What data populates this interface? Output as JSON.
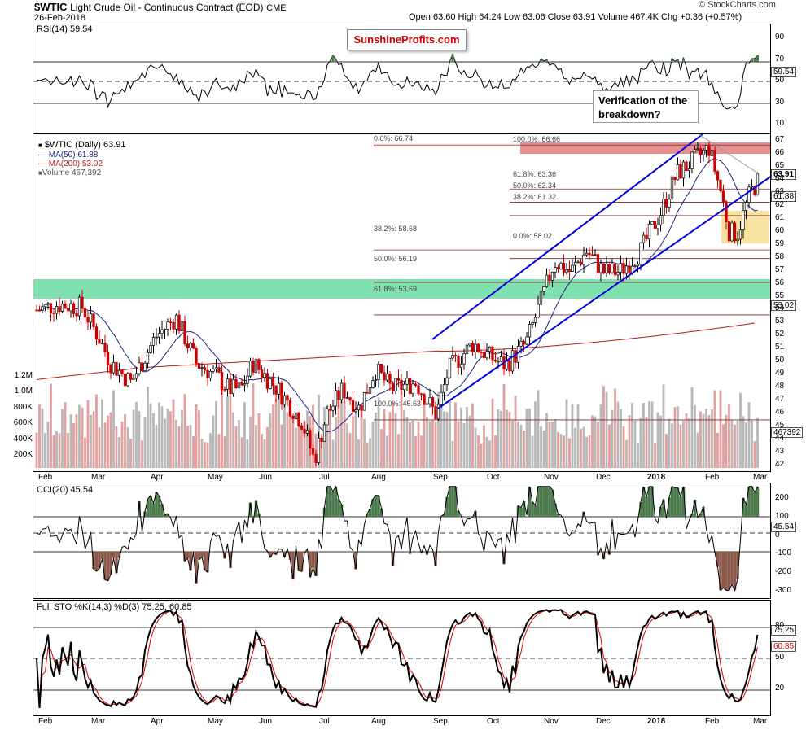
{
  "header": {
    "symbol": "$WTIC",
    "name": "Light Crude Oil - Continuous Contract (EOD)",
    "exchange": "CME",
    "date": "26-Feb-2018",
    "ohlc": "Open 63.60  High 64.24  Low 63.06  Close 63.91  Volume 467.4K  Chg +0.36 (+0.57%)",
    "watermark": "© StockCharts.com"
  },
  "logo_text": "SunshineProfits.com",
  "annotation": "Verification of the breakdown?",
  "rsi_panel": {
    "title": "RSI(14) 59.54",
    "last": "59.54",
    "levels": [
      "90",
      "70",
      "50",
      "30",
      "10"
    ]
  },
  "price_panel": {
    "legend": {
      "main": "$WTIC (Daily) 63.91",
      "ma50": "MA(50) 61.88",
      "ma200": "MA(200) 53.02",
      "volume": "Volume 467,392"
    },
    "last_price": "63.91",
    "ma50_last": "61.88",
    "ma200_last": "53.02",
    "volume_last": "467392",
    "price_axis": [
      "67",
      "66",
      "65",
      "64",
      "63",
      "62",
      "61",
      "60",
      "59",
      "58",
      "57",
      "56",
      "55",
      "54",
      "53",
      "52",
      "51",
      "50",
      "49",
      "48",
      "47",
      "46",
      "45",
      "44",
      "43",
      "42"
    ],
    "volume_axis": [
      "1.2M",
      "1.0M",
      "800K",
      "600K",
      "400K",
      "200K"
    ],
    "fib_labels": {
      "f0_top": "0.0%: 66.74",
      "f100_top": "100.0%: 66.66",
      "f618_r": "61.8%: 63.36",
      "f50_r": "50.0%: 62.34",
      "f382_r": "38.2%: 61.32",
      "f382_l": "38.2%: 58.68",
      "f0_r": "0.0%: 58.02",
      "f50_l": "50.0%: 56.19",
      "f618_l": "61.8%: 53.69",
      "f100_l": "100.0%: 45.63"
    }
  },
  "cci_panel": {
    "title": "CCI(20) 45.54",
    "last": "45.54",
    "levels": [
      "200",
      "100",
      "0",
      "-100",
      "-200",
      "-300"
    ]
  },
  "sto_panel": {
    "title": "Full STO %K(14,3) %D(3) 75.25, 60.85",
    "k_last": "75.25",
    "d_last": "60.85",
    "levels": [
      "80",
      "50",
      "20"
    ]
  },
  "x_axis": [
    "Feb",
    "Mar",
    "Apr",
    "May",
    "Jun",
    "Jul",
    "Aug",
    "Sep",
    "Oct",
    "Nov",
    "Dec",
    "2018",
    "Feb",
    "Mar"
  ],
  "colors": {
    "up": "#000000",
    "down": "#cc0000",
    "ma50": "#1a237e",
    "ma200": "#b71c1c",
    "channel": "#0000e0",
    "green_zone": "#5fd99a",
    "red_zone": "#e57373",
    "yellow_zone": "#f5d67a",
    "osc_fill": "#4c7a4c",
    "osc_fill_neg": "#8b5a4a"
  },
  "chart_data": {
    "type": "candlestick",
    "title": "$WTIC Light Crude Oil - Continuous Contract (EOD)",
    "x_range": [
      "Feb 2017",
      "Feb 2018"
    ],
    "ylim": [
      42,
      67
    ],
    "last": {
      "open": 63.6,
      "high": 64.24,
      "low": 63.06,
      "close": 63.91,
      "volume": 467400
    },
    "monthly_close_approx": {
      "months": [
        "Feb",
        "Mar",
        "Apr",
        "May",
        "Jun",
        "Jul",
        "Aug",
        "Sep",
        "Oct",
        "Nov",
        "Dec",
        "Jan",
        "Feb"
      ],
      "values": [
        54.0,
        50.6,
        49.3,
        48.3,
        46.0,
        50.2,
        47.2,
        51.7,
        54.4,
        57.4,
        60.4,
        64.7,
        63.9
      ]
    },
    "series": [
      {
        "name": "MA(50)",
        "last": 61.88
      },
      {
        "name": "MA(200)",
        "last": 53.02
      }
    ],
    "fibonacci": [
      58.68,
      56.19,
      53.69,
      45.63,
      66.74,
      66.66,
      63.36,
      62.34,
      61.32,
      58.02
    ],
    "zones": {
      "green": [
        53.7,
        55.0
      ],
      "red": [
        65.9,
        66.9
      ],
      "yellow": [
        57.9,
        60.6
      ]
    }
  }
}
